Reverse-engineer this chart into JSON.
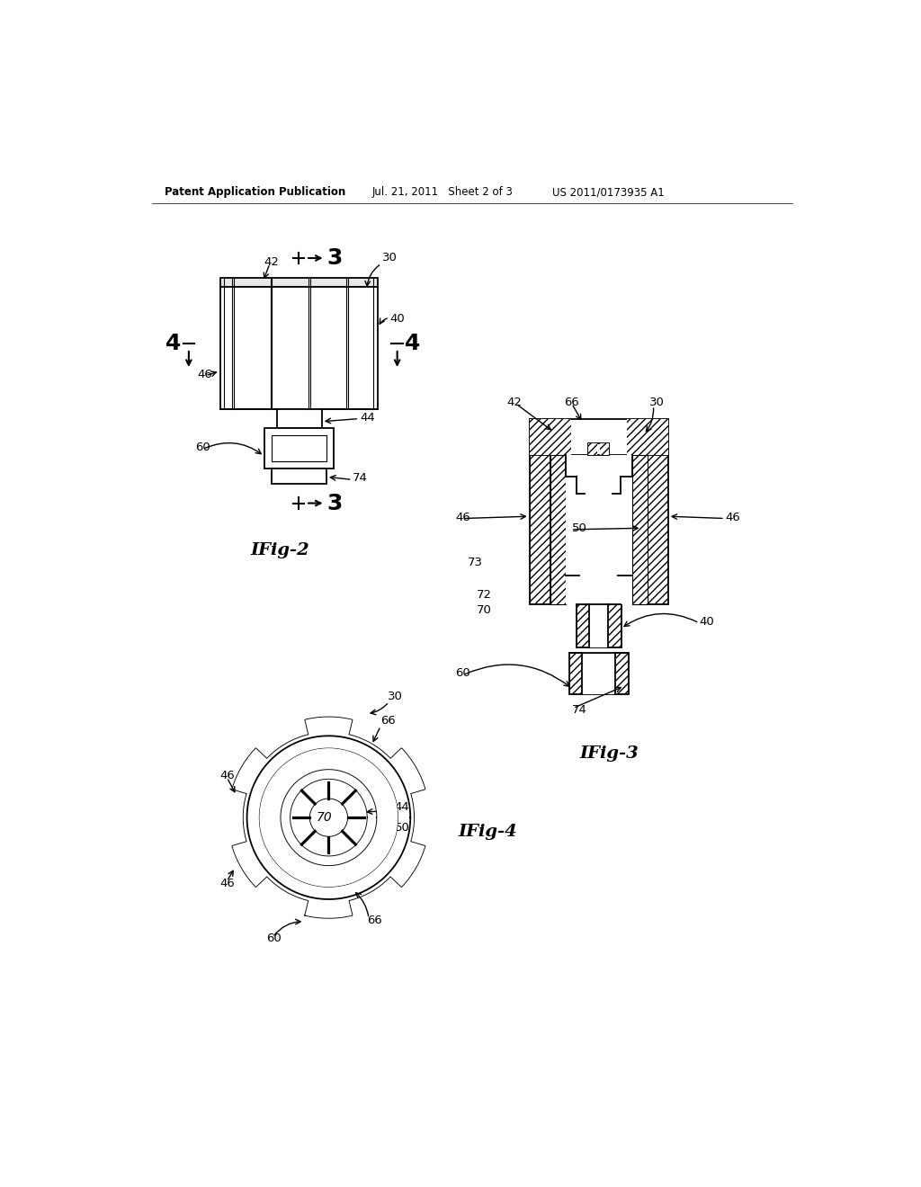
{
  "bg_color": "#ffffff",
  "header_text": "Patent Application Publication",
  "header_date": "Jul. 21, 2011   Sheet 2 of 3",
  "header_patent": "US 2011/0173935 A1",
  "fig2_label": "IFig-2",
  "fig3_label": "IFig-3",
  "fig4_label": "IFig-4",
  "label_fontsize": 9.5,
  "figlabel_fontsize": 14
}
